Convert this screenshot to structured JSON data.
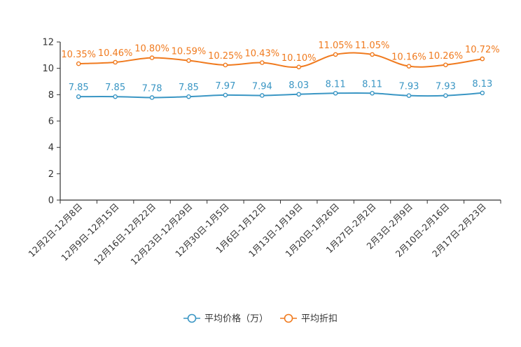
{
  "chart_data": {
    "type": "line",
    "categories": [
      "12月2日-12月8日",
      "12月9日-12月15日",
      "12月16日-12月22日",
      "12月23日-12月29日",
      "12月30日-1月5日",
      "1月6日-1月12日",
      "1月13日-1月19日",
      "1月20日-1月26日",
      "1月27日-2月2日",
      "2月3日-2月9日",
      "2月10日-2月16日",
      "2月17日-2月23日"
    ],
    "ylim": [
      0,
      12
    ],
    "yticks": [
      0,
      2,
      4,
      6,
      8,
      10,
      12
    ],
    "ytick_labels": [
      "0",
      "2",
      "4",
      "6",
      "8",
      "10",
      "12"
    ],
    "series": [
      {
        "name": "平均价格（万）",
        "color": "#3a96c4",
        "values": [
          7.85,
          7.85,
          7.78,
          7.85,
          7.97,
          7.94,
          8.03,
          8.11,
          8.11,
          7.93,
          7.93,
          8.13
        ],
        "labels": [
          "7.85",
          "7.85",
          "7.78",
          "7.85",
          "7.97",
          "7.94",
          "8.03",
          "8.11",
          "8.11",
          "7.93",
          "7.93",
          "8.13"
        ]
      },
      {
        "name": "平均折扣",
        "color": "#f07a1e",
        "values": [
          10.35,
          10.46,
          10.8,
          10.59,
          10.25,
          10.43,
          10.1,
          11.05,
          11.05,
          10.16,
          10.26,
          10.72
        ],
        "labels": [
          "10.35%",
          "10.46%",
          "10.80%",
          "10.59%",
          "10.25%",
          "10.43%",
          "10.10%",
          "11.05%",
          "11.05%",
          "10.16%",
          "10.26%",
          "10.72%"
        ]
      }
    ],
    "legend": "bottom-center",
    "grid": false
  }
}
